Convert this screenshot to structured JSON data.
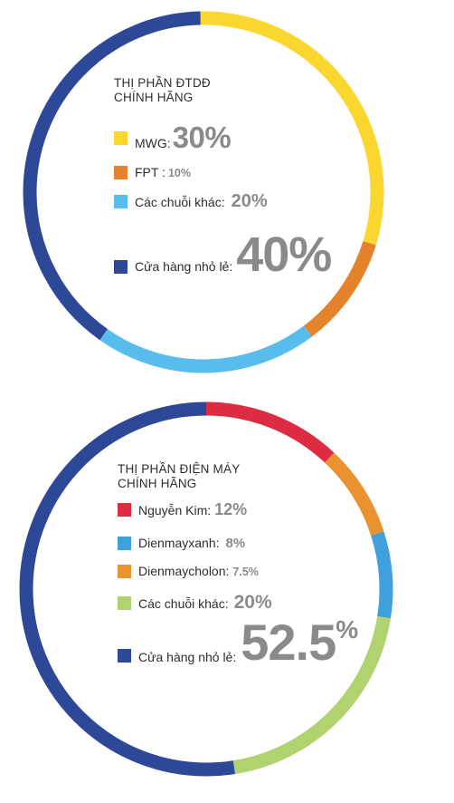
{
  "chart_data": [
    {
      "type": "pie",
      "title": [
        "THỊ PHẦN ĐTDĐ",
        "CHÍNH HÃNG"
      ],
      "series": [
        {
          "name": "MWG:",
          "value_label": "30%",
          "value": 30,
          "color": "#FAD72E"
        },
        {
          "name": "FPT :",
          "value_label": "10%",
          "value": 10,
          "color": "#E5832C"
        },
        {
          "name": "Các chuỗi khác:",
          "value_label": "20%",
          "value": 20,
          "color": "#58BDED"
        },
        {
          "name": "Cửa hàng nhỏ lẻ:",
          "value_label": "40%",
          "value": 40,
          "color": "#2E4898"
        }
      ]
    },
    {
      "type": "pie",
      "title": [
        "THỊ PHẦN ĐIỆN MÁY",
        "CHÍNH HÃNG"
      ],
      "series": [
        {
          "name": "Nguyễn Kim:",
          "value_label": "12%",
          "value": 12,
          "color": "#DD2C41"
        },
        {
          "name": "Dienmayxanh:",
          "value_label": "8%",
          "value": 8,
          "color": "#EA922F"
        },
        {
          "name": "Dienmaycholon:",
          "value_label": "7.5%",
          "value": 7.5,
          "color": "#40A0DD"
        },
        {
          "name": "Các chuỗi khác:",
          "value_label": "20%",
          "value": 20,
          "color": "#B1D36F"
        },
        {
          "name": "Cửa hàng nhỏ lẻ:",
          "value_label": "52.5",
          "value_suffix": "%",
          "value": 52.5,
          "color": "#2E4898"
        }
      ]
    }
  ]
}
